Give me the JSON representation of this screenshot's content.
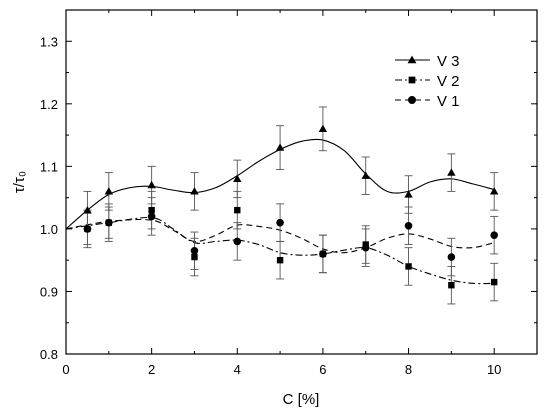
{
  "chart_data": {
    "type": "line",
    "xlabel": "C [%]",
    "ylabel": "τ/τ₀",
    "xlim": [
      0,
      11
    ],
    "ylim": [
      0.8,
      1.35
    ],
    "xticks": [
      0,
      2,
      4,
      6,
      8,
      10
    ],
    "yticks": [
      0.8,
      0.9,
      1.0,
      1.1,
      1.2,
      1.3
    ],
    "xtick_labels": [
      "0",
      "2",
      "4",
      "6",
      "8",
      "10"
    ],
    "ytick_labels": [
      "0.8",
      "0.9",
      "1.0",
      "1.1",
      "1.2",
      "1.3"
    ],
    "grid": false,
    "legend_position": "top-right",
    "series": [
      {
        "name": "V 3",
        "marker": "triangle",
        "dash": "solid",
        "x": [
          0.5,
          1,
          2,
          3,
          4,
          5,
          6,
          7,
          8,
          9,
          10
        ],
        "y": [
          1.03,
          1.06,
          1.07,
          1.06,
          1.08,
          1.13,
          1.16,
          1.085,
          1.055,
          1.09,
          1.06
        ],
        "error": [
          0.03,
          0.03,
          0.03,
          0.03,
          0.03,
          0.035,
          0.035,
          0.03,
          0.03,
          0.03,
          0.03
        ],
        "fit": [
          [
            0,
            1.0
          ],
          [
            0.5,
            1.03
          ],
          [
            1,
            1.055
          ],
          [
            1.5,
            1.066
          ],
          [
            2,
            1.068
          ],
          [
            2.5,
            1.062
          ],
          [
            3,
            1.058
          ],
          [
            3.5,
            1.066
          ],
          [
            4,
            1.085
          ],
          [
            4.5,
            1.108
          ],
          [
            5,
            1.127
          ],
          [
            5.5,
            1.14
          ],
          [
            6,
            1.142
          ],
          [
            6.5,
            1.125
          ],
          [
            7,
            1.088
          ],
          [
            7.5,
            1.06
          ],
          [
            8,
            1.06
          ],
          [
            8.5,
            1.075
          ],
          [
            9,
            1.08
          ],
          [
            9.5,
            1.072
          ],
          [
            10,
            1.063
          ]
        ]
      },
      {
        "name": "V 2",
        "marker": "square",
        "dash": "dashdot",
        "x": [
          0.5,
          1,
          2,
          3,
          4,
          5,
          6,
          7,
          8,
          9,
          10
        ],
        "y": [
          1.0,
          1.01,
          1.03,
          0.955,
          1.03,
          0.95,
          0.96,
          0.975,
          0.94,
          0.91,
          0.915
        ],
        "error": [
          0.025,
          0.025,
          0.03,
          0.03,
          0.03,
          0.03,
          0.03,
          0.03,
          0.03,
          0.03,
          0.03
        ],
        "fit": [
          [
            0,
            1.0
          ],
          [
            1,
            1.01
          ],
          [
            2,
            1.018
          ],
          [
            2.5,
            1.0
          ],
          [
            3,
            0.978
          ],
          [
            3.5,
            0.98
          ],
          [
            4,
            0.982
          ],
          [
            4.5,
            0.975
          ],
          [
            5,
            0.962
          ],
          [
            5.5,
            0.958
          ],
          [
            6,
            0.96
          ],
          [
            6.5,
            0.966
          ],
          [
            7,
            0.97
          ],
          [
            7.5,
            0.958
          ],
          [
            8,
            0.94
          ],
          [
            8.5,
            0.928
          ],
          [
            9,
            0.918
          ],
          [
            9.5,
            0.913
          ],
          [
            10,
            0.913
          ]
        ]
      },
      {
        "name": "V 1",
        "marker": "circle",
        "dash": "dashed",
        "x": [
          0.5,
          1,
          2,
          3,
          4,
          5,
          6,
          7,
          8,
          9,
          10
        ],
        "y": [
          1.0,
          1.01,
          1.02,
          0.965,
          0.98,
          1.01,
          0.96,
          0.97,
          1.005,
          0.955,
          0.99
        ],
        "error": [
          0.03,
          0.03,
          0.03,
          0.03,
          0.03,
          0.03,
          0.03,
          0.03,
          0.03,
          0.03,
          0.03
        ],
        "fit": [
          [
            0,
            1.0
          ],
          [
            1,
            1.012
          ],
          [
            2,
            1.014
          ],
          [
            2.5,
            0.998
          ],
          [
            3,
            0.98
          ],
          [
            3.5,
            0.99
          ],
          [
            4,
            1.006
          ],
          [
            4.5,
            1.004
          ],
          [
            5,
            0.998
          ],
          [
            5.5,
            0.985
          ],
          [
            6,
            0.968
          ],
          [
            6.5,
            0.962
          ],
          [
            7,
            0.97
          ],
          [
            7.5,
            0.985
          ],
          [
            8,
            0.992
          ],
          [
            8.5,
            0.984
          ],
          [
            9,
            0.972
          ],
          [
            9.5,
            0.97
          ],
          [
            10,
            0.978
          ]
        ]
      }
    ]
  }
}
